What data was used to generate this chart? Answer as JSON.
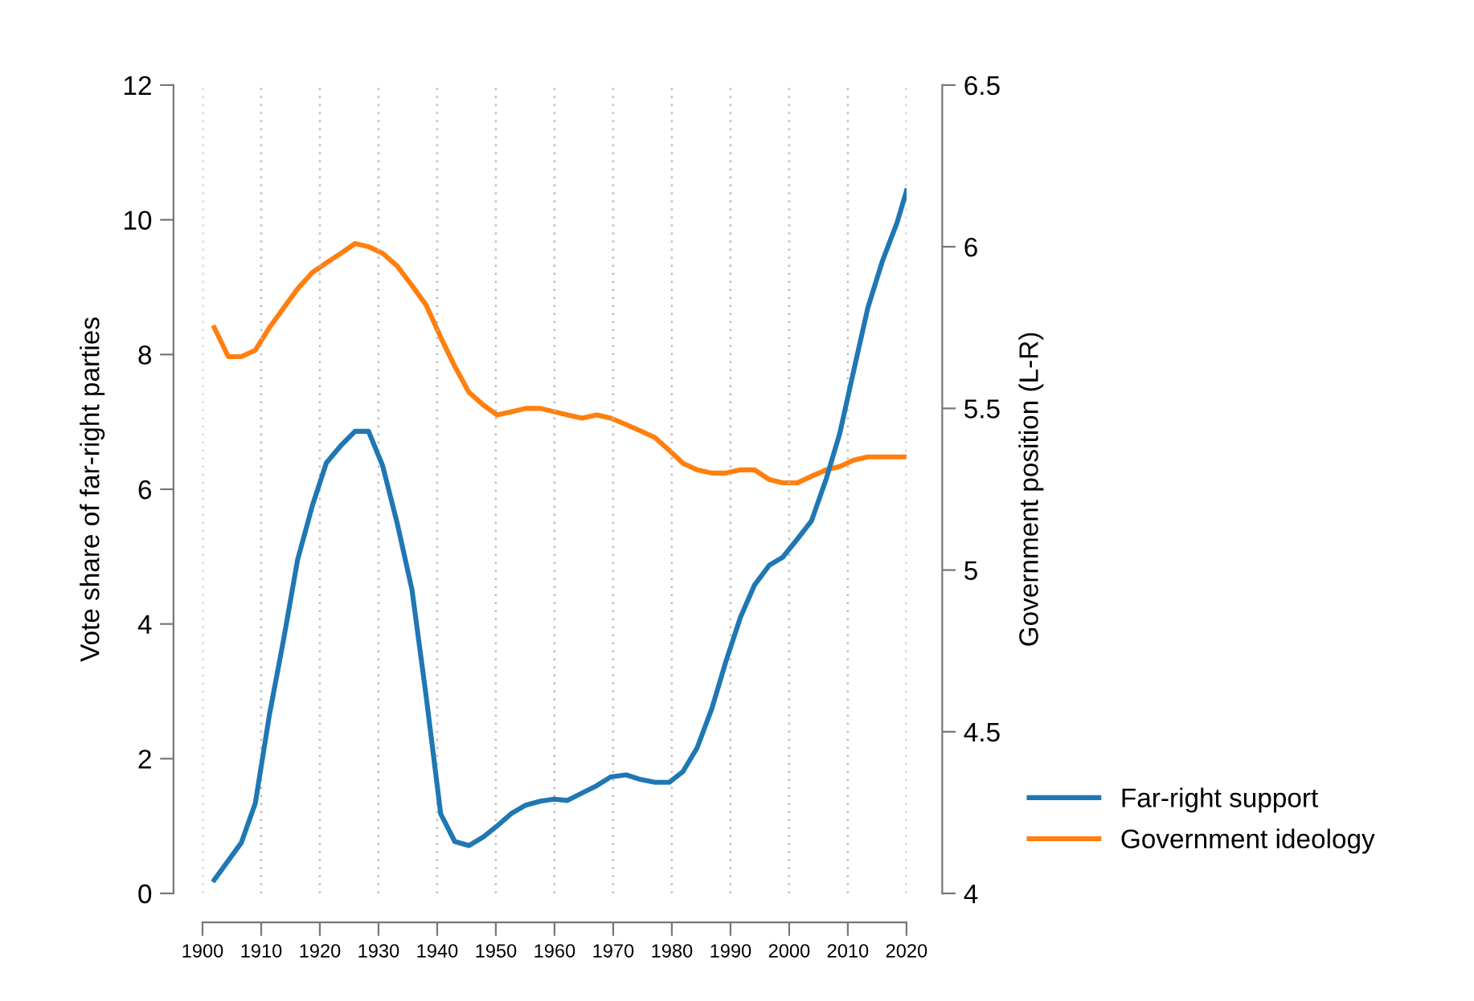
{
  "chart_data": {
    "type": "line",
    "xlabel": null,
    "ylabel": "Vote share of far-right parties",
    "y2label": "Government position (L-R)",
    "xlim": [
      1900,
      2020
    ],
    "xticks": [
      1900,
      1910,
      1920,
      1930,
      1940,
      1950,
      1960,
      1970,
      1980,
      1990,
      2000,
      2010,
      2020
    ],
    "ylim": [
      0,
      12
    ],
    "yticks": [
      0,
      2,
      4,
      6,
      8,
      10,
      12
    ],
    "y2lim": [
      4,
      6.5
    ],
    "y2ticks": [
      4,
      4.5,
      5,
      5.5,
      6,
      6.5
    ],
    "grid": "x",
    "legend": "right",
    "marker": "none",
    "line_style": "solid",
    "series": [
      {
        "name": "Far-right support",
        "color": "#1f77b4",
        "x": [
          1902,
          1906.6,
          1909,
          1911.4,
          1913.8,
          1916.2,
          1918.7,
          1921.1,
          1923.6,
          1926,
          1928.3,
          1930.7,
          1933.2,
          1935.7,
          1938.1,
          1940.6,
          1943,
          1945.4,
          1947.9,
          1950.2,
          1952.7,
          1955.1,
          1957.6,
          1959.9,
          1962.2,
          1964.7,
          1967.2,
          1969.6,
          1972.2,
          1974.7,
          1977.1,
          1979.6,
          1981.9,
          1984.3,
          1986.8,
          1989.2,
          1991.7,
          1994.1,
          1996.6,
          1998.9,
          2001.4,
          2003.8,
          2006.3,
          2008.6,
          2011,
          2013.4,
          2015.9,
          2018.4,
          2020
        ],
        "values": [
          0.2,
          0.75,
          1.34,
          2.65,
          3.76,
          4.95,
          5.75,
          6.39,
          6.65,
          6.86,
          6.86,
          6.35,
          5.49,
          4.51,
          2.94,
          1.18,
          0.77,
          0.71,
          0.84,
          1.0,
          1.19,
          1.31,
          1.37,
          1.4,
          1.38,
          1.49,
          1.6,
          1.73,
          1.76,
          1.69,
          1.65,
          1.65,
          1.81,
          2.16,
          2.74,
          3.44,
          4.1,
          4.58,
          4.87,
          4.99,
          5.26,
          5.53,
          6.15,
          6.82,
          7.76,
          8.69,
          9.39,
          9.96,
          10.43
        ]
      },
      {
        "name": "Government ideology",
        "color": "#ff7f0e",
        "axis": "y2",
        "x": [
          1902,
          1904.4,
          1906.6,
          1909,
          1911.4,
          1913.8,
          1916.2,
          1918.7,
          1921.1,
          1923.6,
          1926,
          1928.3,
          1930.7,
          1933.2,
          1935.7,
          1938.1,
          1940.6,
          1943,
          1945.4,
          1947.9,
          1950.2,
          1952.7,
          1955.1,
          1957.6,
          1959.9,
          1962.2,
          1964.7,
          1967.2,
          1969.6,
          1972.2,
          1974.7,
          1977.1,
          1979.6,
          1981.9,
          1984.3,
          1986.8,
          1989.2,
          1991.7,
          1994.1,
          1996.6,
          1998.9,
          2001.4,
          2003.8,
          2006.3,
          2008.6,
          2011,
          2013.4,
          2015.9,
          2018.4,
          2020
        ],
        "values": [
          5.75,
          5.66,
          5.66,
          5.68,
          5.75,
          5.81,
          5.87,
          5.92,
          5.95,
          5.98,
          6.01,
          6.0,
          5.98,
          5.94,
          5.88,
          5.82,
          5.72,
          5.63,
          5.55,
          5.51,
          5.48,
          5.49,
          5.5,
          5.5,
          5.49,
          5.48,
          5.47,
          5.48,
          5.47,
          5.45,
          5.43,
          5.41,
          5.37,
          5.33,
          5.31,
          5.3,
          5.3,
          5.31,
          5.31,
          5.28,
          5.27,
          5.27,
          5.29,
          5.31,
          5.32,
          5.34,
          5.35,
          5.35,
          5.35,
          5.35
        ]
      }
    ]
  }
}
